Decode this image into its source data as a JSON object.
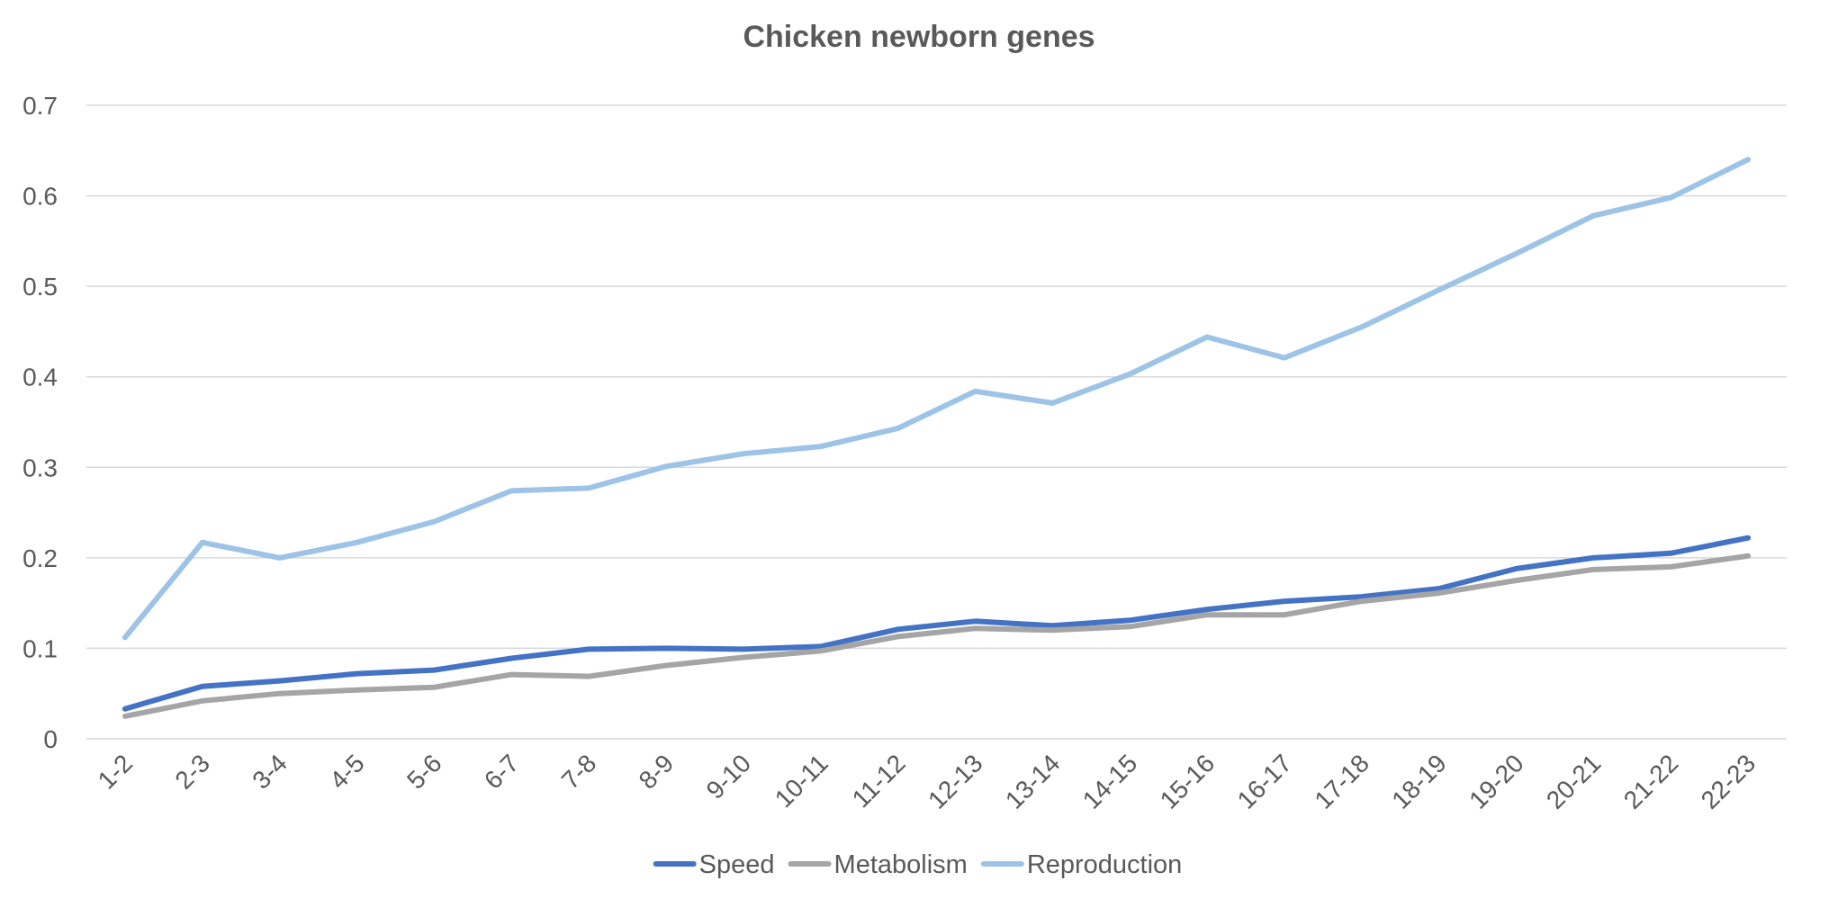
{
  "chart_data": {
    "type": "line",
    "title": "Chicken newborn genes",
    "xlabel": "",
    "ylabel": "",
    "ylim": [
      0,
      0.7
    ],
    "yticks": [
      "0",
      "0.1",
      "0.2",
      "0.3",
      "0.4",
      "0.5",
      "0.6",
      "0.7"
    ],
    "grid": true,
    "legend_position": "bottom",
    "categories": [
      "1-2",
      "2-3",
      "3-4",
      "4-5",
      "5-6",
      "6-7",
      "7-8",
      "8-9",
      "9-10",
      "10-11",
      "11-12",
      "12-13",
      "13-14",
      "14-15",
      "15-16",
      "16-17",
      "17-18",
      "18-19",
      "19-20",
      "20-21",
      "21-22",
      "22-23"
    ],
    "series": [
      {
        "name": "Speed",
        "color": "#4472c4",
        "values": [
          0.033,
          0.058,
          0.064,
          0.072,
          0.076,
          0.089,
          0.099,
          0.1,
          0.099,
          0.102,
          0.121,
          0.13,
          0.125,
          0.131,
          0.143,
          0.152,
          0.157,
          0.166,
          0.188,
          0.2,
          0.205,
          0.222
        ]
      },
      {
        "name": "Metabolism",
        "color": "#a5a5a5",
        "values": [
          0.025,
          0.042,
          0.05,
          0.054,
          0.057,
          0.071,
          0.069,
          0.081,
          0.09,
          0.097,
          0.113,
          0.122,
          0.12,
          0.124,
          0.137,
          0.137,
          0.152,
          0.161,
          0.175,
          0.187,
          0.19,
          0.202
        ]
      },
      {
        "name": "Reproduction",
        "color": "#9dc3e6",
        "values": [
          0.112,
          0.217,
          0.2,
          0.217,
          0.24,
          0.274,
          0.277,
          0.301,
          0.315,
          0.323,
          0.343,
          0.384,
          0.371,
          0.403,
          0.444,
          0.421,
          0.455,
          0.496,
          0.536,
          0.578,
          0.598,
          0.64
        ]
      }
    ]
  }
}
